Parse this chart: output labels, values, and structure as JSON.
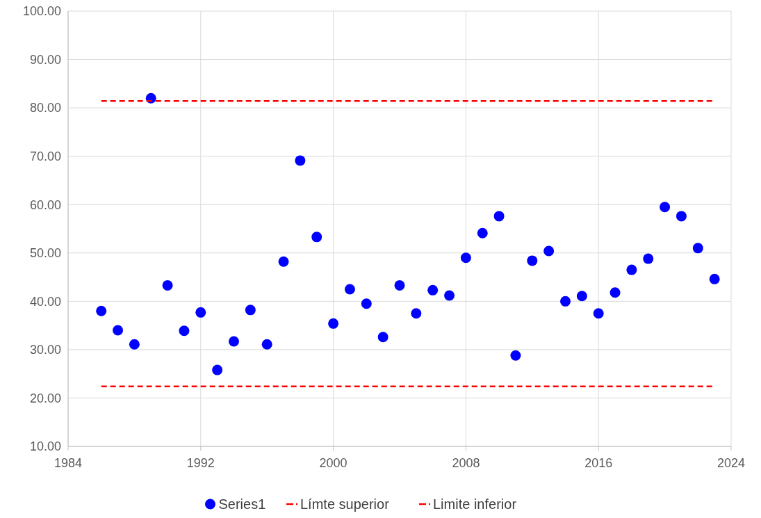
{
  "chart_data": {
    "type": "scatter",
    "grid": true,
    "legend": "bottom",
    "marker": "circle",
    "xlim": [
      1984,
      2024
    ],
    "xticks": [
      1984,
      1992,
      2000,
      2008,
      2016,
      2024
    ],
    "ylim": [
      10,
      100
    ],
    "yticks": [
      {
        "value": 10,
        "label": "10.00"
      },
      {
        "value": 20,
        "label": "20.00"
      },
      {
        "value": 30,
        "label": "30.00"
      },
      {
        "value": 40,
        "label": "40.00"
      },
      {
        "value": 50,
        "label": "50.00"
      },
      {
        "value": 60,
        "label": "60.00"
      },
      {
        "value": 70,
        "label": "70.00"
      },
      {
        "value": 80,
        "label": "80.00"
      },
      {
        "value": 90,
        "label": "90.00"
      },
      {
        "value": 100,
        "label": "100.00"
      }
    ],
    "x": [
      1986,
      1987,
      1988,
      1989,
      1990,
      1991,
      1992,
      1993,
      1994,
      1995,
      1996,
      1997,
      1998,
      1999,
      2000,
      2001,
      2002,
      2003,
      2004,
      2005,
      2006,
      2007,
      2008,
      2009,
      2010,
      2011,
      2012,
      2013,
      2014,
      2015,
      2016,
      2017,
      2018,
      2019,
      2020,
      2021,
      2022,
      2023
    ],
    "series": [
      {
        "name": "Series1",
        "color": "#0000ff",
        "values": [
          38.0,
          34.0,
          31.1,
          82.0,
          43.3,
          33.9,
          37.7,
          25.8,
          31.7,
          38.2,
          31.1,
          48.2,
          69.1,
          53.3,
          35.4,
          42.5,
          39.5,
          32.6,
          43.3,
          37.5,
          42.3,
          41.2,
          49.0,
          54.1,
          57.6,
          28.8,
          48.4,
          50.4,
          40.0,
          41.1,
          37.5,
          41.8,
          46.5,
          48.8,
          59.5,
          57.6,
          51.0,
          44.6
        ]
      },
      {
        "name": "Límte superior",
        "type": "line",
        "marker": "none",
        "line_style": "dashed",
        "color": "#ff0000",
        "values": [
          81.4,
          81.4,
          81.4,
          81.4,
          81.4,
          81.4,
          81.4,
          81.4,
          81.4,
          81.4,
          81.4,
          81.4,
          81.4,
          81.4,
          81.4,
          81.4,
          81.4,
          81.4,
          81.4,
          81.4,
          81.4,
          81.4,
          81.4,
          81.4,
          81.4,
          81.4,
          81.4,
          81.4,
          81.4,
          81.4,
          81.4,
          81.4,
          81.4,
          81.4,
          81.4,
          81.4,
          81.4,
          81.4
        ]
      },
      {
        "name": "Limite inferior",
        "type": "line",
        "marker": "none",
        "line_style": "dashed",
        "color": "#ff0000",
        "values": [
          22.4,
          22.4,
          22.4,
          22.4,
          22.4,
          22.4,
          22.4,
          22.4,
          22.4,
          22.4,
          22.4,
          22.4,
          22.4,
          22.4,
          22.4,
          22.4,
          22.4,
          22.4,
          22.4,
          22.4,
          22.4,
          22.4,
          22.4,
          22.4,
          22.4,
          22.4,
          22.4,
          22.4,
          22.4,
          22.4,
          22.4,
          22.4,
          22.4,
          22.4,
          22.4,
          22.4,
          22.4,
          22.4
        ]
      }
    ]
  }
}
